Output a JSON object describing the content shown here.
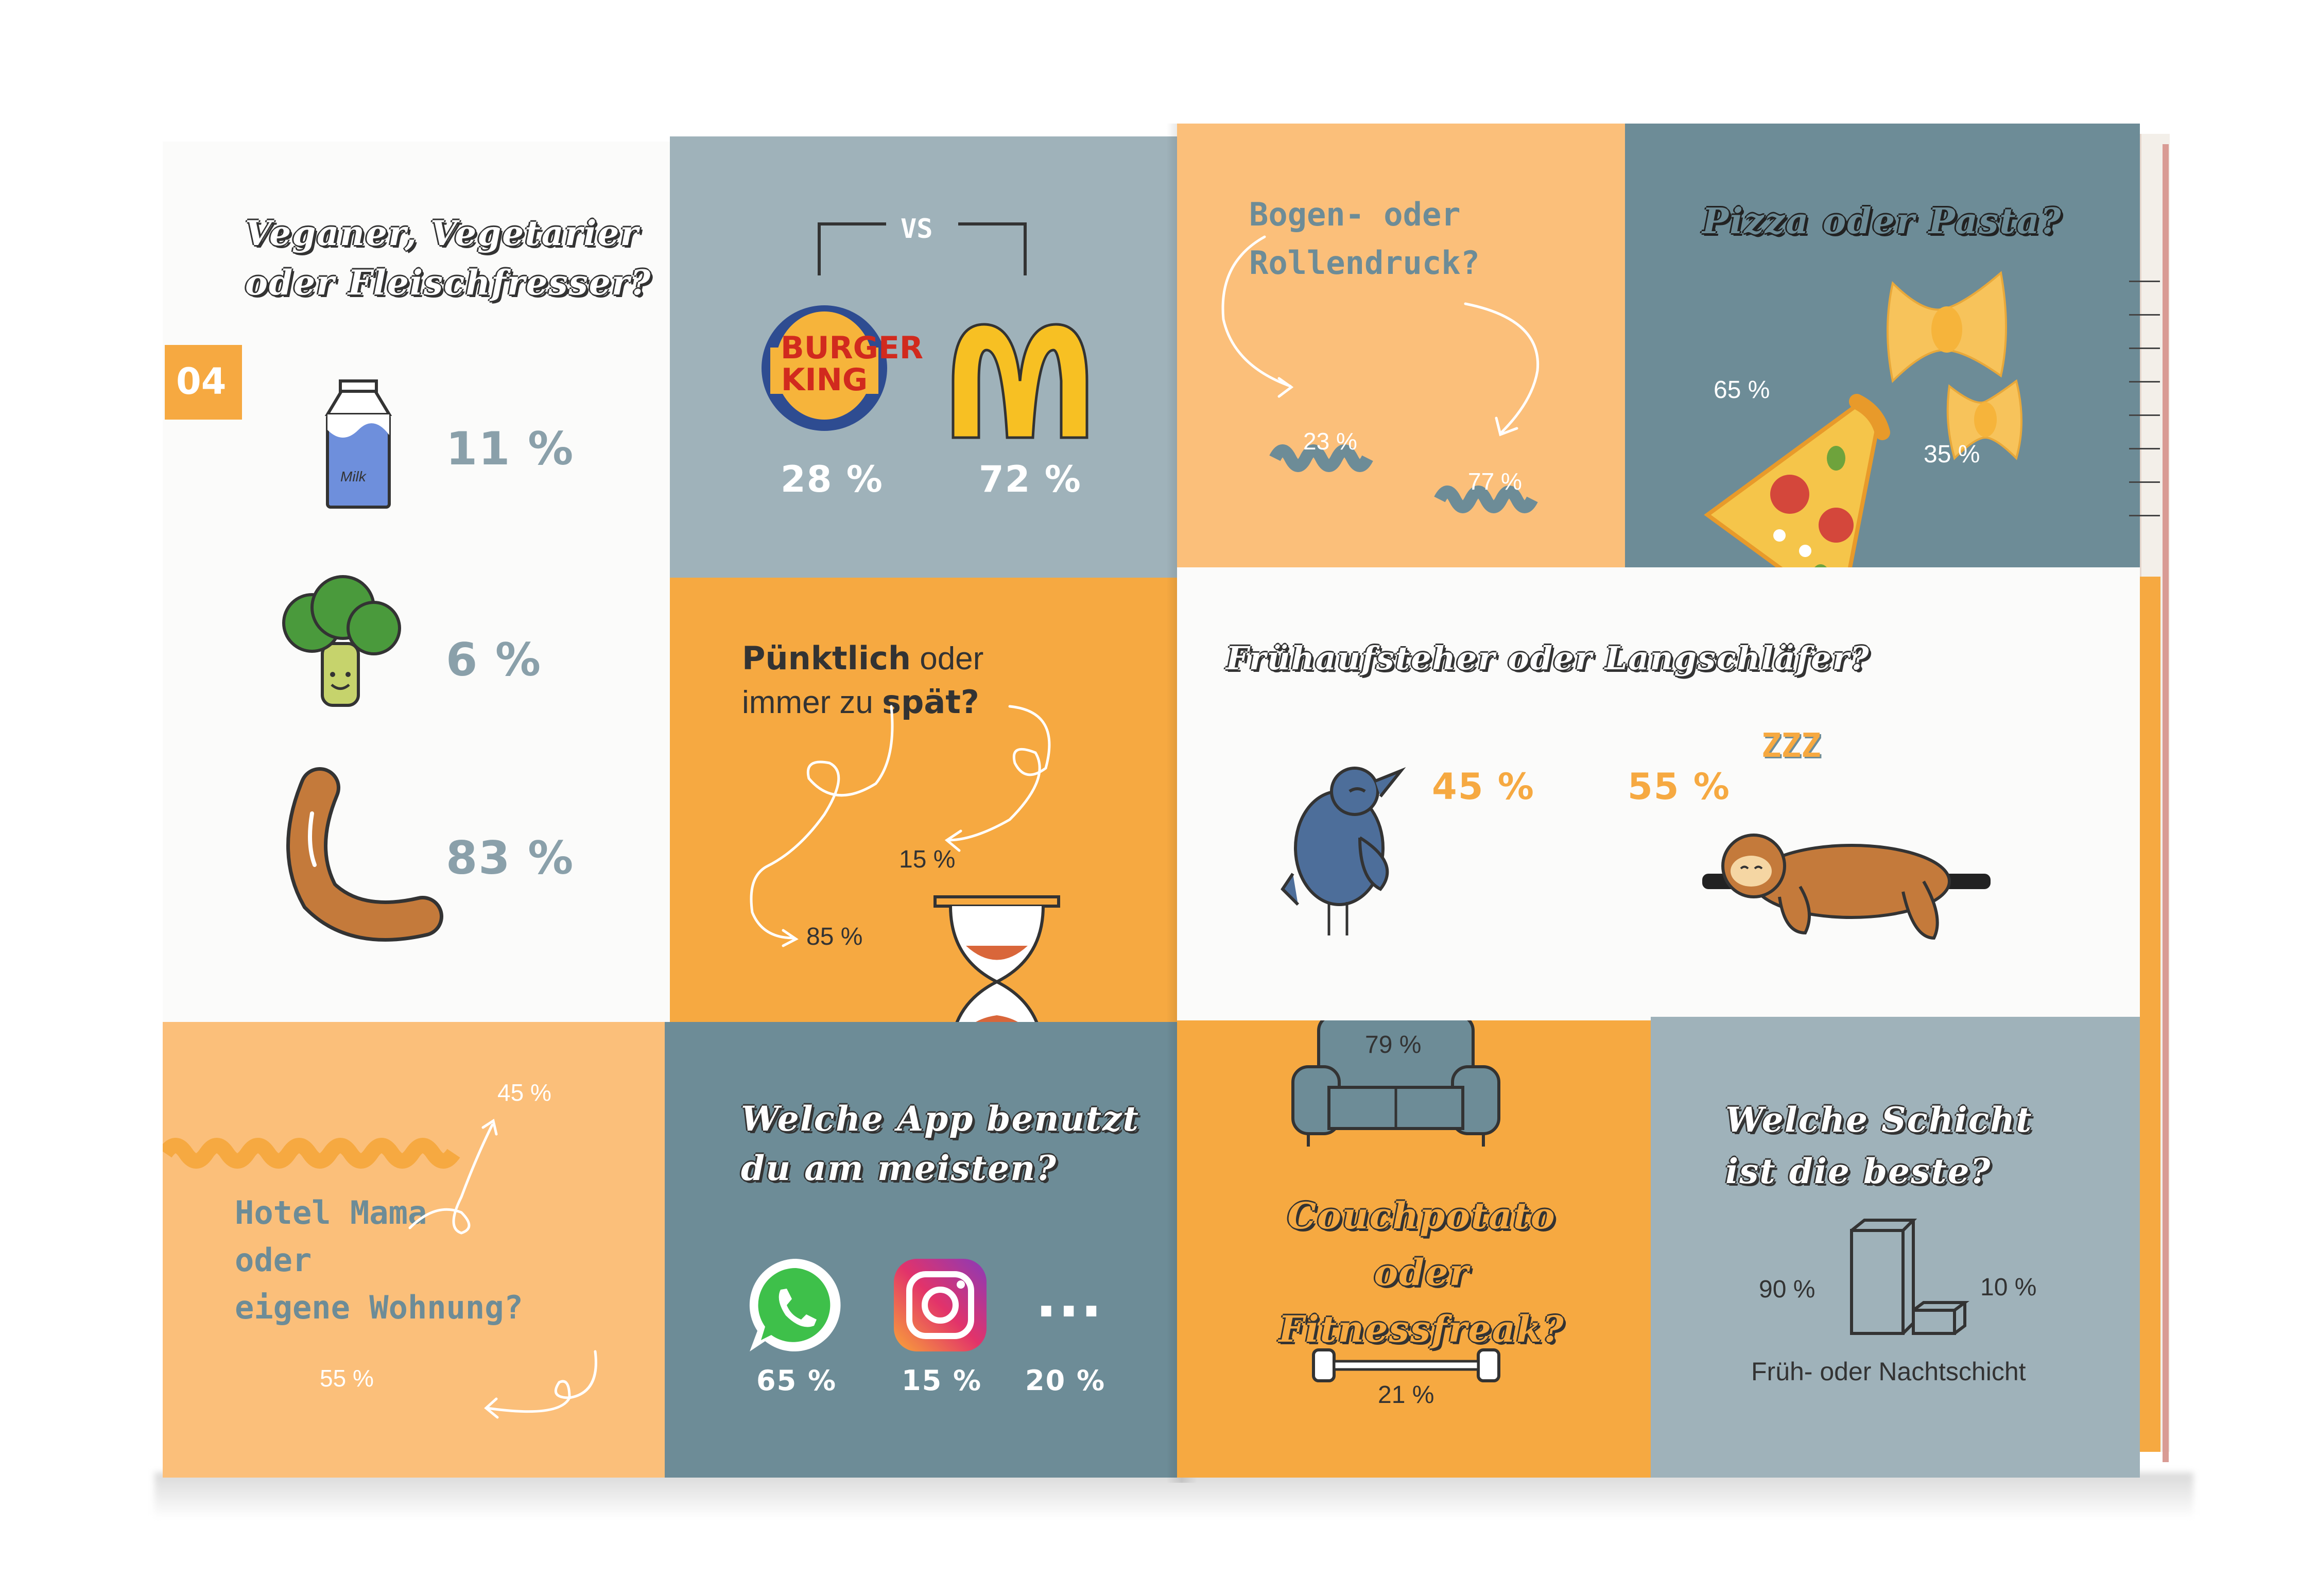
{
  "page_number": "04",
  "diet": {
    "title_line1": "Veganer, Vegetarier",
    "title_line2": "oder Fleischfresser?",
    "items": [
      {
        "icon": "milk-carton-icon",
        "label": "Milk",
        "value": "11 %"
      },
      {
        "icon": "broccoli-icon",
        "value": "6 %"
      },
      {
        "icon": "sausage-icon",
        "value": "83 %"
      }
    ]
  },
  "fastfood": {
    "vs": "VS",
    "burger_king_logo": "BURGER KING",
    "burger_king_value": "28 %",
    "mcdonalds_value": "72 %"
  },
  "print": {
    "title_line1": "Bogen- oder",
    "title_line2": "Rollendruck?",
    "bogen_value": "23 %",
    "rollen_value": "77 %"
  },
  "food": {
    "title": "Pizza oder Pasta?",
    "pizza_value": "65 %",
    "pasta_value": "35 %"
  },
  "punctual": {
    "line1_bold": "Pünktlich",
    "line1_rest": " oder",
    "line2_rest": "immer zu ",
    "line2_bold": "spät?",
    "late_value": "15 %",
    "ontime_value": "85 %"
  },
  "sleep": {
    "title": "Frühaufsteher oder Langschläfer?",
    "early_value": "45 %",
    "late_value": "55 %",
    "zzz": "ZZZ"
  },
  "living": {
    "line1": "Hotel Mama",
    "line2": "oder",
    "line3": "eigene Wohnung?",
    "mama_value": "45 %",
    "own_value": "55 %"
  },
  "apps": {
    "title_line1": "Welche App benutzt",
    "title_line2": "du am meisten?",
    "whatsapp_value": "65 %",
    "instagram_value": "15 %",
    "more_label": "...",
    "other_value": "20 %"
  },
  "fitness": {
    "couch_value": "79 %",
    "title_line1": "Couchpotato",
    "title_line2": "oder Fitnessfreak?",
    "fitness_value": "21 %"
  },
  "shift": {
    "title_line1": "Welche Schicht",
    "title_line2": "ist die beste?",
    "early_value": "90 %",
    "night_value": "10 %",
    "caption": "Früh- oder Nachtschicht"
  },
  "colors": {
    "orange": "#f6a941",
    "peach": "#fbbf7a",
    "blue_gray": "#9fb2ba",
    "teal": "#6d8c97",
    "text_gray": "#8aa0aa"
  }
}
